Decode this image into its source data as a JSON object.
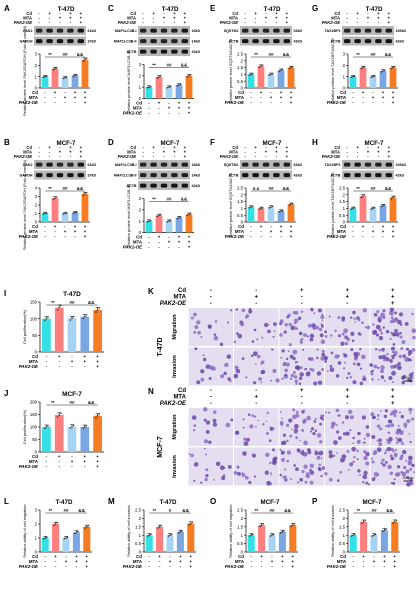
{
  "colors": {
    "cd": "#ff7f7f",
    "mta": "#a6d3f2",
    "ctrl": "#33e0e6",
    "cd_mta": "#7aa7e3",
    "oe": "#f57c22"
  },
  "row_labels": {
    "cd": "Cd",
    "mta": "MTA",
    "oe": "PAK2-OE"
  },
  "bar_signs": {
    "cd": [
      "-",
      "+",
      "-",
      "+",
      "+"
    ],
    "mta": [
      "-",
      "-",
      "+",
      "+",
      "+"
    ],
    "oe": [
      "-",
      "-",
      "-",
      "-",
      "+"
    ]
  },
  "image_signs": {
    "cd": [
      "-",
      "-",
      "+",
      "+",
      "+"
    ],
    "mta": [
      "-",
      "+",
      "-",
      "+",
      "+"
    ],
    "oe": [
      "-",
      "-",
      "-",
      "-",
      "+"
    ]
  },
  "blot_signs": {
    "cd": [
      "-",
      "+",
      "-",
      "+",
      "+"
    ],
    "mta": [
      "-",
      "-",
      "+",
      "+",
      "+"
    ],
    "oe": [
      "-",
      "-",
      "-",
      "-",
      "+"
    ]
  },
  "blots": [
    {
      "letter": "A",
      "title": "T-47D",
      "bands": [
        {
          "name": "PAK2",
          "kd": "61kD"
        },
        {
          "name": "GAPDH",
          "kd": "37kD"
        }
      ],
      "ylabel": "Relative protein level PAK2/GAPDH (Fold of control)",
      "ymax": 3,
      "ticks": [
        0,
        1,
        2,
        3
      ],
      "values": [
        1.0,
        1.7,
        0.9,
        1.1,
        2.5
      ],
      "sig": [
        "**",
        "##",
        "&&"
      ]
    },
    {
      "letter": "C",
      "title": "T-47D",
      "bands": [
        {
          "name": "MAP1LC3B-I",
          "kd": "16kD"
        },
        {
          "name": "MAP1LC3B-II",
          "kd": "14kD"
        },
        {
          "name": "ACTB",
          "kd": "42kD"
        }
      ],
      "ylabel": "Relative protein level MAP1LC3B-II/I",
      "ymax": 3,
      "ticks": [
        0,
        1,
        2,
        3
      ],
      "values": [
        1.0,
        1.9,
        1.0,
        1.2,
        2.0
      ],
      "sig": [
        "**",
        "##",
        "&&"
      ]
    },
    {
      "letter": "E",
      "title": "T-47D",
      "bands": [
        {
          "name": "SQSTM1",
          "kd": "62kD"
        },
        {
          "name": "ACTB",
          "kd": "42kD"
        }
      ],
      "ylabel": "Relative protein level SQSTM1/ACTB",
      "ymax": 2.5,
      "ticks": [
        0,
        0.5,
        1,
        1.5,
        2,
        2.5
      ],
      "values": [
        1.0,
        1.6,
        1.0,
        1.3,
        1.5
      ],
      "sig": [
        "**",
        "##",
        "&&"
      ]
    },
    {
      "letter": "G",
      "title": "T-47D",
      "bands": [
        {
          "name": "TAX1BP1",
          "kd": "100kD"
        },
        {
          "name": "ACTB",
          "kd": "42kD"
        }
      ],
      "ylabel": "Relative protein level TAX1BP1/ACTB",
      "ymax": 3,
      "ticks": [
        0,
        1,
        2,
        3
      ],
      "values": [
        1.0,
        1.8,
        1.0,
        1.5,
        1.8
      ],
      "sig": [
        "**",
        "##",
        "&&"
      ]
    },
    {
      "letter": "B",
      "title": "MCF-7",
      "bands": [
        {
          "name": "PAK2",
          "kd": "61kD"
        },
        {
          "name": "GAPDH",
          "kd": "37kD"
        }
      ],
      "ylabel": "Relative protein level PAK2/GAPDH (Fold of control)",
      "ymax": 4,
      "ticks": [
        0,
        1,
        2,
        3,
        4
      ],
      "values": [
        1.0,
        2.8,
        1.0,
        1.1,
        3.3
      ],
      "sig": [
        "**",
        "##",
        "&&"
      ]
    },
    {
      "letter": "D",
      "title": "MCF-7",
      "bands": [
        {
          "name": "MAP1LC3B-I",
          "kd": "16kD"
        },
        {
          "name": "MAP1LC3B-II",
          "kd": "14kD"
        },
        {
          "name": "ACTB",
          "kd": "42kD"
        }
      ],
      "ylabel": "Relative protein level MAP1LC3B-II/I",
      "ymax": 3,
      "ticks": [
        0,
        1,
        2,
        3
      ],
      "values": [
        1.0,
        1.5,
        1.0,
        1.3,
        1.6
      ],
      "sig": [
        "**",
        "##",
        "&&"
      ]
    },
    {
      "letter": "F",
      "title": "MCF-7",
      "bands": [
        {
          "name": "SQSTM1",
          "kd": "62kD"
        },
        {
          "name": "ACTB",
          "kd": "42kD"
        }
      ],
      "ylabel": "Relative protein level SQSTM1/ACTB",
      "ymax": 2.5,
      "ticks": [
        0,
        0.5,
        1,
        1.5,
        2,
        2.5
      ],
      "values": [
        1.1,
        1.0,
        1.1,
        0.8,
        1.3
      ],
      "sig": [
        "n.s",
        "##",
        "&&"
      ]
    },
    {
      "letter": "H",
      "title": "MCF-7",
      "bands": [
        {
          "name": "TAX1BP1",
          "kd": "100kD"
        },
        {
          "name": "ACTB",
          "kd": "42kD"
        }
      ],
      "ylabel": "Relative protein level TAX1BP1/ACTB",
      "ymax": 2.5,
      "ticks": [
        0,
        0.5,
        1,
        1.5,
        2,
        2.5
      ],
      "values": [
        1.0,
        1.9,
        1.0,
        1.2,
        1.8
      ],
      "sig": [
        "**",
        "##",
        "&&"
      ]
    }
  ],
  "prolif": [
    {
      "letter": "I",
      "title": "T-47D",
      "ylabel": "Cell proliferation(%)",
      "ymax": 150,
      "ticks": [
        0,
        50,
        100,
        150
      ],
      "values": [
        100,
        133,
        101,
        106,
        126
      ],
      "sig": [
        "**",
        "##",
        "&&"
      ]
    },
    {
      "letter": "J",
      "title": "MCF-7",
      "ylabel": "Cell proliferation(%)",
      "ymax": 200,
      "ticks": [
        0,
        50,
        100,
        150,
        200
      ],
      "values": [
        100,
        148,
        101,
        100,
        145
      ],
      "sig": [
        "**",
        "##",
        "&&"
      ]
    }
  ],
  "images": [
    {
      "letter": "K",
      "cell": "T-47D",
      "rows": [
        "Migration",
        "Invasion"
      ],
      "scale": "200μm"
    },
    {
      "letter": "N",
      "cell": "MCF-7",
      "rows": [
        "Migration",
        "Invasion"
      ],
      "scale": "200μm"
    }
  ],
  "bottom": [
    {
      "letter": "L",
      "title": "T-47D",
      "ylabel": "Relative ability of cell migration",
      "ymax": 3,
      "ticks": [
        0,
        1,
        2,
        3
      ],
      "values": [
        1.0,
        2.0,
        1.0,
        1.4,
        1.8
      ],
      "sig": [
        "**",
        "##",
        "&&"
      ]
    },
    {
      "letter": "M",
      "title": "T-47D",
      "ylabel": "Relative ability of cell invasion",
      "ymax": 2.5,
      "ticks": [
        0,
        0.5,
        1,
        1.5,
        2,
        2.5
      ],
      "values": [
        1.0,
        1.5,
        1.0,
        1.2,
        1.7
      ],
      "sig": [
        "**",
        "#",
        "&&"
      ]
    },
    {
      "letter": "O",
      "title": "MCF-7",
      "ylabel": "Relative ability of cell migration",
      "ymax": 2.5,
      "ticks": [
        0,
        0.5,
        1,
        1.5,
        2,
        2.5
      ],
      "values": [
        1.0,
        1.6,
        1.0,
        1.2,
        1.6
      ],
      "sig": [
        "**",
        "##",
        "&&"
      ]
    },
    {
      "letter": "P",
      "title": "MCF-7",
      "ylabel": "Relative ability of cell invasion",
      "ymax": 2.5,
      "ticks": [
        0,
        0.5,
        1,
        1.5,
        2,
        2.5
      ],
      "values": [
        1.0,
        1.8,
        1.0,
        1.3,
        1.8
      ],
      "sig": [
        "**",
        "##",
        "&&"
      ]
    }
  ]
}
